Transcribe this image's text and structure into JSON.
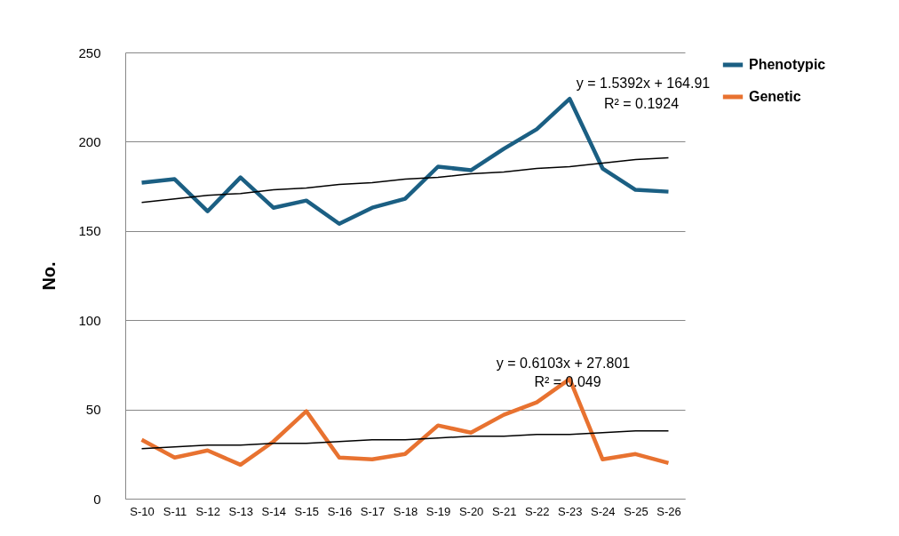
{
  "chart_data": {
    "type": "line",
    "ylabel": "No.",
    "categories": [
      "S-10",
      "S-11",
      "S-12",
      "S-13",
      "S-14",
      "S-15",
      "S-16",
      "S-17",
      "S-18",
      "S-19",
      "S-20",
      "S-21",
      "S-22",
      "S-23",
      "S-24",
      "S-25",
      "S-26"
    ],
    "series": [
      {
        "name": "Phenotypic",
        "color": "#1b5f83",
        "values": [
          177,
          179,
          161,
          180,
          163,
          167,
          154,
          163,
          168,
          186,
          184,
          196,
          207,
          224,
          185,
          173,
          172
        ]
      },
      {
        "name": "Genetic",
        "color": "#e87230",
        "values": [
          33,
          23,
          27,
          19,
          32,
          49,
          23,
          22,
          25,
          41,
          37,
          47,
          54,
          67,
          22,
          25,
          20
        ]
      },
      {
        "color": "#000000",
        "values": [
          166,
          168,
          170,
          171,
          173,
          174,
          176,
          177,
          179,
          180,
          182,
          183,
          185,
          186,
          188,
          190,
          191
        ]
      },
      {
        "color": "#000000",
        "values": [
          28,
          29,
          30,
          30,
          31,
          31,
          32,
          33,
          33,
          34,
          35,
          35,
          36,
          36,
          37,
          38,
          38
        ]
      }
    ],
    "ylim": [
      0,
      250
    ],
    "yticks": [
      0,
      50,
      100,
      150,
      200,
      250
    ],
    "grid": "y",
    "legend": "right",
    "annotations": [
      "y = 1.5392x + 164.91",
      "R² = 0.1924",
      "y = 0.6103x + 27.801",
      "R² = 0.049"
    ]
  }
}
